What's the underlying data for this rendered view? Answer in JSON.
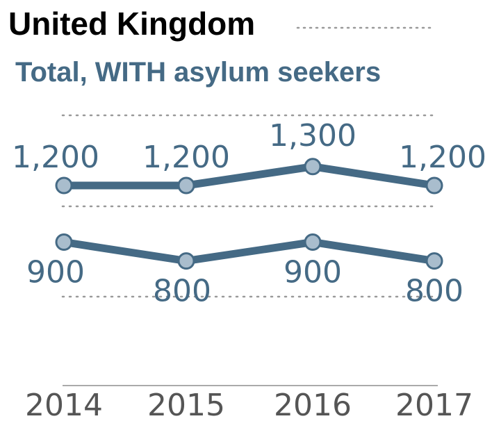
{
  "chart_data": {
    "type": "line",
    "title": "United Kingdom",
    "subtitle": "Total, WITH asylum seekers",
    "categories": [
      "2014",
      "2015",
      "2016",
      "2017"
    ],
    "series": [
      {
        "values": [
          1200,
          1200,
          1300,
          1200
        ],
        "labels": [
          "1,200",
          "1,200",
          "1,300",
          "1,200"
        ]
      },
      {
        "values": [
          900,
          800,
          900,
          800
        ],
        "labels": [
          "900",
          "800",
          "900",
          "800"
        ]
      }
    ],
    "grid": "dotted",
    "colors": {
      "line": "#456a85",
      "marker_fill": "#a9bdcd",
      "title": "#000000",
      "subtitle": "#456a85",
      "axis_text": "#555555",
      "grid": "#999999"
    }
  }
}
